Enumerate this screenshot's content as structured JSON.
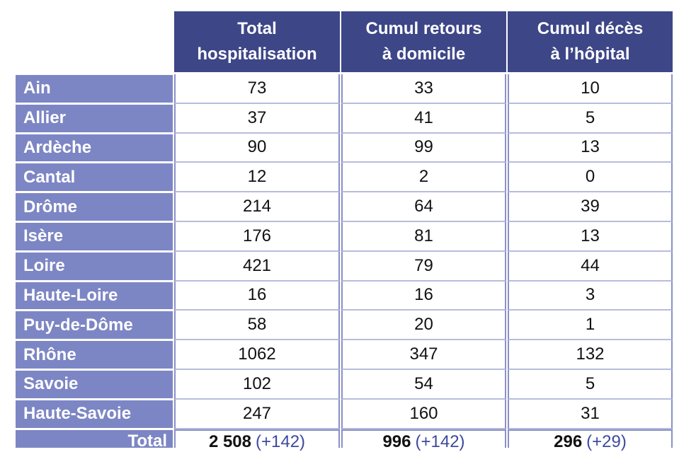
{
  "columns": [
    {
      "line1": "Total",
      "line2": "hospitalisation"
    },
    {
      "line1": "Cumul retours",
      "line2": "à domicile"
    },
    {
      "line1": "Cumul décès",
      "line2": "à l’hôpital"
    }
  ],
  "rows": [
    {
      "label": "Ain",
      "values": [
        "73",
        "33",
        "10"
      ]
    },
    {
      "label": "Allier",
      "values": [
        "37",
        "41",
        "5"
      ]
    },
    {
      "label": "Ardèche",
      "values": [
        "90",
        "99",
        "13"
      ]
    },
    {
      "label": "Cantal",
      "values": [
        "12",
        "2",
        "0"
      ]
    },
    {
      "label": "Drôme",
      "values": [
        "214",
        "64",
        "39"
      ]
    },
    {
      "label": "Isère",
      "values": [
        "176",
        "81",
        "13"
      ]
    },
    {
      "label": "Loire",
      "values": [
        "421",
        "79",
        "44"
      ]
    },
    {
      "label": "Haute-Loire",
      "values": [
        "16",
        "16",
        "3"
      ]
    },
    {
      "label": "Puy-de-Dôme",
      "values": [
        "58",
        "20",
        "1"
      ]
    },
    {
      "label": "Rhône",
      "values": [
        "1062",
        "347",
        "132"
      ]
    },
    {
      "label": "Savoie",
      "values": [
        "102",
        "54",
        "5"
      ]
    },
    {
      "label": "Haute-Savoie",
      "values": [
        "247",
        "160",
        "31"
      ]
    }
  ],
  "total": {
    "label": "Total",
    "cells": [
      {
        "value": "2 508",
        "delta": "(+142)"
      },
      {
        "value": "996",
        "delta": "(+142)"
      },
      {
        "value": "296",
        "delta": "(+29)"
      }
    ]
  },
  "colors": {
    "header_bg": "#3d4687",
    "row_label_bg": "#7d86c4",
    "delta_text": "#3d4aa0"
  }
}
